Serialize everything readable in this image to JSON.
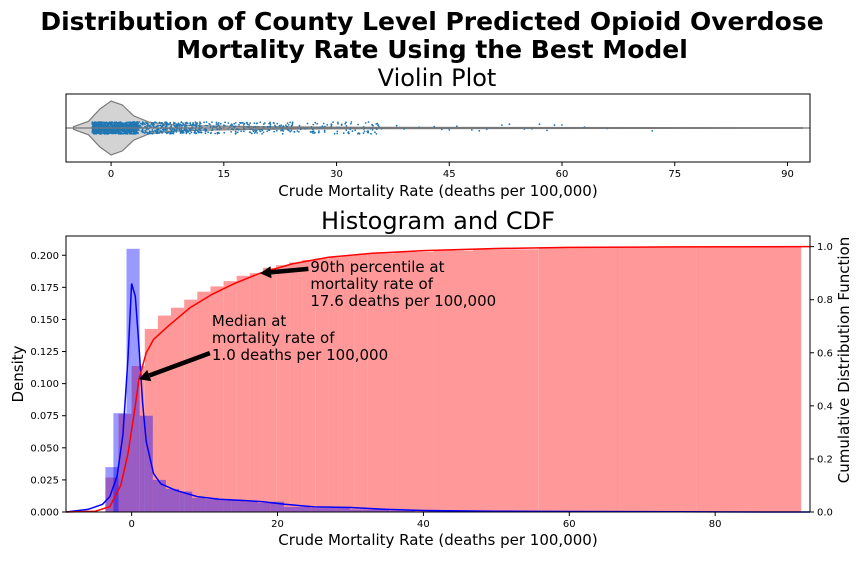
{
  "figure": {
    "title_line1": "Distribution of County Level Predicted Opioid Overdose",
    "title_line2": "Mortality Rate Using the Best Model"
  },
  "chart_data": [
    {
      "type": "violin",
      "title": "Violin Plot",
      "xlabel": "Crude Mortality Rate (deaths per 100,000)",
      "xlim": [
        -6,
        93
      ],
      "xticks": [
        0,
        15,
        30,
        45,
        60,
        75,
        90
      ],
      "body_color": "#d3d3d3",
      "point_color": "#1f77b4",
      "median": 1.0,
      "outlier_points": [
        36,
        38,
        39,
        41,
        43,
        44,
        45,
        46,
        48,
        49,
        50,
        52,
        53,
        55,
        56,
        57,
        58,
        59,
        60,
        63,
        66,
        72
      ],
      "density_profile": [
        {
          "x": -5,
          "w": 0.05
        },
        {
          "x": -3,
          "w": 0.25
        },
        {
          "x": -1.5,
          "w": 0.7
        },
        {
          "x": 0,
          "w": 1.0
        },
        {
          "x": 1.5,
          "w": 0.85
        },
        {
          "x": 3,
          "w": 0.45
        },
        {
          "x": 5,
          "w": 0.22
        },
        {
          "x": 8,
          "w": 0.12
        },
        {
          "x": 12,
          "w": 0.08
        },
        {
          "x": 20,
          "w": 0.05
        },
        {
          "x": 30,
          "w": 0.03
        },
        {
          "x": 50,
          "w": 0.02
        },
        {
          "x": 70,
          "w": 0.015
        },
        {
          "x": 92,
          "w": 0.01
        }
      ]
    },
    {
      "type": "histogram",
      "title": "Histogram and CDF",
      "xlabel": "Crude Mortality Rate (deaths per 100,000)",
      "ylabel": "Density",
      "ylabel_right": "Cumulative Distribution Function",
      "xlim": [
        -9,
        93
      ],
      "ylim": [
        0,
        0.215
      ],
      "ylim_right": [
        0,
        1.04
      ],
      "xticks": [
        0,
        20,
        40,
        60,
        80
      ],
      "yticks": [
        0.0,
        0.025,
        0.05,
        0.075,
        0.1,
        0.125,
        0.15,
        0.175,
        0.2
      ],
      "yticks_right": [
        0.0,
        0.2,
        0.4,
        0.6,
        0.8,
        1.0
      ],
      "series": [
        {
          "name": "",
          "kind": "density_hist",
          "color": "#0000ff",
          "bin_width": 1.8,
          "bins": [
            {
              "x0": -3.6,
              "value": 0.035
            },
            {
              "x0": -2.5,
              "value": 0.077
            },
            {
              "x0": -0.7,
              "value": 0.205
            },
            {
              "x0": 1.1,
              "value": 0.075
            },
            {
              "x0": 2.9,
              "value": 0.025
            },
            {
              "x0": 4.7,
              "value": 0.018
            },
            {
              "x0": 6.5,
              "value": 0.016
            },
            {
              "x0": 8.3,
              "value": 0.011
            },
            {
              "x0": 10.1,
              "value": 0.01
            },
            {
              "x0": 11.9,
              "value": 0.01
            },
            {
              "x0": 13.7,
              "value": 0.009
            },
            {
              "x0": 15.5,
              "value": 0.008
            },
            {
              "x0": 17.3,
              "value": 0.007
            },
            {
              "x0": 19.1,
              "value": 0.008
            },
            {
              "x0": 20.9,
              "value": 0.004
            },
            {
              "x0": 22.7,
              "value": 0.004
            },
            {
              "x0": 24.5,
              "value": 0.003
            },
            {
              "x0": 26.3,
              "value": 0.003
            },
            {
              "x0": 28.1,
              "value": 0.003
            },
            {
              "x0": 29.9,
              "value": 0.002
            },
            {
              "x0": 31.7,
              "value": 0.002
            },
            {
              "x0": 33.5,
              "value": 0.002
            },
            {
              "x0": 35.3,
              "value": 0.001
            },
            {
              "x0": 37.1,
              "value": 0.001
            },
            {
              "x0": 40.7,
              "value": 0.001
            },
            {
              "x0": 44.3,
              "value": 0.001
            },
            {
              "x0": 49.7,
              "value": 0.0006
            },
            {
              "x0": 55.1,
              "value": 0.0005
            },
            {
              "x0": 62.3,
              "value": 0.0004
            },
            {
              "x0": 69.5,
              "value": 0.0003
            }
          ],
          "kde": [
            {
              "x": -9,
              "y": 0.0
            },
            {
              "x": -6,
              "y": 0.002
            },
            {
              "x": -4,
              "y": 0.006
            },
            {
              "x": -3,
              "y": 0.012
            },
            {
              "x": -2,
              "y": 0.028
            },
            {
              "x": -1.2,
              "y": 0.06
            },
            {
              "x": -0.5,
              "y": 0.12
            },
            {
              "x": 0,
              "y": 0.178
            },
            {
              "x": 0.5,
              "y": 0.168
            },
            {
              "x": 1,
              "y": 0.13
            },
            {
              "x": 1.5,
              "y": 0.085
            },
            {
              "x": 2,
              "y": 0.055
            },
            {
              "x": 3,
              "y": 0.03
            },
            {
              "x": 4,
              "y": 0.022
            },
            {
              "x": 6,
              "y": 0.017
            },
            {
              "x": 9,
              "y": 0.012
            },
            {
              "x": 12,
              "y": 0.01
            },
            {
              "x": 15,
              "y": 0.009
            },
            {
              "x": 18,
              "y": 0.008
            },
            {
              "x": 21,
              "y": 0.006
            },
            {
              "x": 25,
              "y": 0.004
            },
            {
              "x": 30,
              "y": 0.0035
            },
            {
              "x": 35,
              "y": 0.002
            },
            {
              "x": 40,
              "y": 0.0012
            },
            {
              "x": 50,
              "y": 0.0006
            },
            {
              "x": 60,
              "y": 0.0004
            },
            {
              "x": 70,
              "y": 0.0003
            },
            {
              "x": 80,
              "y": 0.0001
            },
            {
              "x": 93,
              "y": 0.0
            }
          ]
        },
        {
          "name": "",
          "kind": "cumulative_hist",
          "color": "#ff0000",
          "bin_width": 1.8,
          "bins": [
            {
              "x0": -3.6,
              "value": 0.13
            },
            {
              "x0": -1.8,
              "value": 0.37
            },
            {
              "x0": 0.0,
              "value": 0.55
            },
            {
              "x0": 1.8,
              "value": 0.69
            },
            {
              "x0": 3.6,
              "value": 0.74
            },
            {
              "x0": 5.4,
              "value": 0.77
            },
            {
              "x0": 7.2,
              "value": 0.8
            },
            {
              "x0": 9.0,
              "value": 0.83
            },
            {
              "x0": 10.8,
              "value": 0.85
            },
            {
              "x0": 12.6,
              "value": 0.87
            },
            {
              "x0": 14.4,
              "value": 0.89
            },
            {
              "x0": 16.2,
              "value": 0.9
            },
            {
              "x0": 18.0,
              "value": 0.92
            },
            {
              "x0": 19.8,
              "value": 0.93
            },
            {
              "x0": 21.6,
              "value": 0.94
            },
            {
              "x0": 23.4,
              "value": 0.95
            },
            {
              "x0": 25.2,
              "value": 0.955
            },
            {
              "x0": 27.0,
              "value": 0.96
            },
            {
              "x0": 28.8,
              "value": 0.965
            },
            {
              "x0": 30.6,
              "value": 0.97
            },
            {
              "x0": 32.4,
              "value": 0.975
            },
            {
              "x0": 36.0,
              "value": 0.98
            },
            {
              "x0": 41.4,
              "value": 0.985
            },
            {
              "x0": 46.8,
              "value": 0.99
            },
            {
              "x0": 55.8,
              "value": 0.995
            },
            {
              "x0": 66.6,
              "value": 0.998
            },
            {
              "x0": 77.4,
              "value": 1.0
            }
          ],
          "cdf_line": [
            {
              "x": -9,
              "y": 0.0
            },
            {
              "x": -5,
              "y": 0.003
            },
            {
              "x": -3,
              "y": 0.02
            },
            {
              "x": -1.5,
              "y": 0.1
            },
            {
              "x": -0.5,
              "y": 0.22
            },
            {
              "x": 0.5,
              "y": 0.4
            },
            {
              "x": 1.0,
              "y": 0.5
            },
            {
              "x": 2,
              "y": 0.6
            },
            {
              "x": 3,
              "y": 0.65
            },
            {
              "x": 5,
              "y": 0.7
            },
            {
              "x": 8,
              "y": 0.77
            },
            {
              "x": 11,
              "y": 0.82
            },
            {
              "x": 14,
              "y": 0.86
            },
            {
              "x": 17.6,
              "y": 0.9
            },
            {
              "x": 22,
              "y": 0.935
            },
            {
              "x": 27,
              "y": 0.96
            },
            {
              "x": 33,
              "y": 0.975
            },
            {
              "x": 40,
              "y": 0.985
            },
            {
              "x": 50,
              "y": 0.993
            },
            {
              "x": 60,
              "y": 0.997
            },
            {
              "x": 75,
              "y": 0.999
            },
            {
              "x": 93,
              "y": 1.0
            }
          ]
        }
      ],
      "annotations": [
        {
          "text_lines": [
            "Median at",
            "mortality rate of",
            "1.0 deaths per 100,000"
          ],
          "point": {
            "x": 1.0,
            "y_cdf": 0.5
          },
          "text_anchor": {
            "x": 11,
            "y": 0.145
          }
        },
        {
          "text_lines": [
            "90th percentile at",
            "mortality rate of",
            "17.6 deaths per 100,000"
          ],
          "point": {
            "x": 17.6,
            "y_cdf": 0.9
          },
          "text_anchor": {
            "x": 24.5,
            "y": 0.187
          }
        }
      ]
    }
  ]
}
